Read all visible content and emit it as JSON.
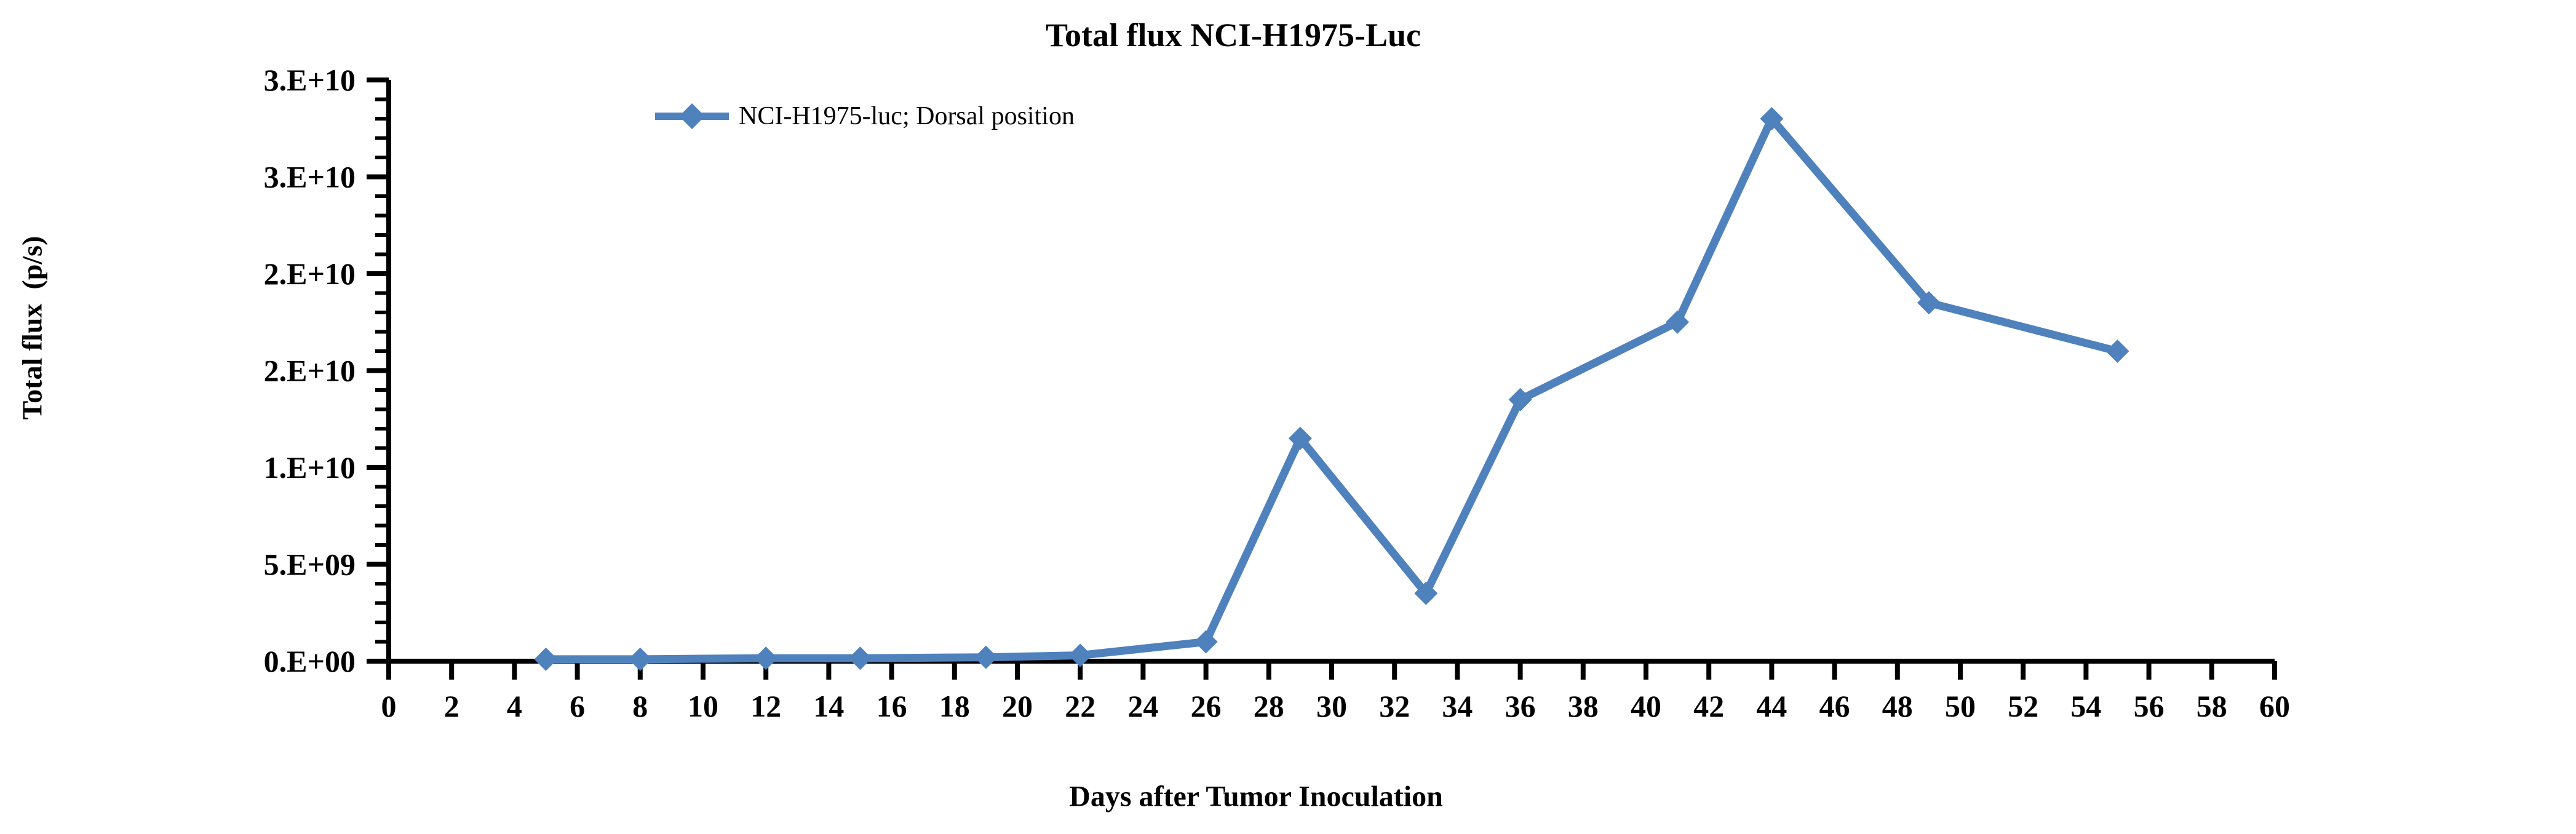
{
  "page": {
    "background": "#ffffff"
  },
  "chart_data": {
    "type": "line",
    "title": "Total flux NCI-H1975-Luc",
    "xlabel": "Days after Tumor Inoculation",
    "ylabel": "Total flux  (p/s)",
    "grid": false,
    "legend": {
      "position": "top-left-inside",
      "entries": [
        {
          "label": "NCI-H1975-luc; Dorsal position",
          "color": "#4F81BD",
          "marker": "diamond"
        }
      ]
    },
    "x_axis": {
      "min": 0,
      "max": 60,
      "major_step": 2,
      "tick_labels": [
        "0",
        "2",
        "4",
        "6",
        "8",
        "10",
        "12",
        "14",
        "16",
        "18",
        "20",
        "22",
        "24",
        "26",
        "28",
        "30",
        "32",
        "34",
        "36",
        "38",
        "40",
        "42",
        "44",
        "46",
        "48",
        "50",
        "52",
        "54",
        "56",
        "58",
        "60"
      ]
    },
    "y_axis": {
      "min": 0,
      "max": 30000000000,
      "major_step": 5000000000,
      "minor_step": 1000000000,
      "tick_labels": [
        "0.E+00",
        "5.E+09",
        "1.E+10",
        "2.E+10",
        "2.E+10",
        "3.E+10",
        "3.E+10"
      ]
    },
    "series": [
      {
        "name": "NCI-H1975-luc; Dorsal position",
        "color": "#4F81BD",
        "marker": "diamond",
        "x": [
          5,
          8,
          12,
          15,
          19,
          22,
          26,
          29,
          33,
          36,
          41,
          44,
          49,
          55
        ],
        "y": [
          100000000.0,
          100000000.0,
          150000000.0,
          150000000.0,
          200000000.0,
          300000000.0,
          1000000000.0,
          11500000000.0,
          3500000000.0,
          13500000000.0,
          17500000000.0,
          28000000000.0,
          18500000000.0,
          16000000000.0
        ]
      }
    ]
  }
}
